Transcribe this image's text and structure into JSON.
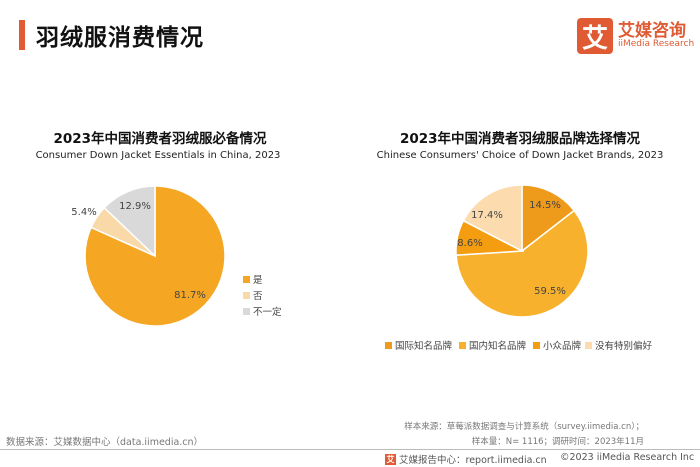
{
  "header": {
    "title": "羽绒服消费情况"
  },
  "logo": {
    "mark": "艾",
    "name_cn": "艾媒咨询",
    "name_en": "iiMedia Research"
  },
  "chart_data": [
    {
      "type": "pie",
      "title": "2023年中国消费者羽绒服必备情况",
      "subtitle": "Consumer Down Jacket Essentials in China, 2023",
      "categories": [
        "是",
        "否",
        "不一定"
      ],
      "values": [
        81.7,
        5.4,
        12.9
      ],
      "labels": [
        "81.7%",
        "5.4%",
        "12.9%"
      ],
      "colors": [
        "#f5a623",
        "#fad9a8",
        "#d9d9d9"
      ],
      "legend_position": "right"
    },
    {
      "type": "pie",
      "title": "2023年中国消费者羽绒服品牌选择情况",
      "subtitle": "Chinese Consumers' Choice of Down Jacket Brands, 2023",
      "categories": [
        "国际知名品牌",
        "国内知名品牌",
        "小众品牌",
        "没有特别偏好"
      ],
      "values": [
        14.5,
        59.5,
        8.6,
        17.4
      ],
      "labels": [
        "14.5%",
        "59.5%",
        "8.6%",
        "17.4%"
      ],
      "colors": [
        "#ee9a1a",
        "#f7b12c",
        "#f59d11",
        "#fcdcae"
      ],
      "legend_position": "bottom"
    }
  ],
  "source": {
    "left": "数据来源：艾媒数据中心（data.iimedia.cn）",
    "right_line1": "样本来源：草莓派数据调查与计算系统（survey.iimedia.cn）；",
    "right_line2": "样本量：N= 1116；调研时间：2023年11月"
  },
  "footer": {
    "mark": "艾",
    "center": "艾媒报告中心：report.iimedia.cn",
    "right": "©2023  iiMedia Research  Inc"
  }
}
